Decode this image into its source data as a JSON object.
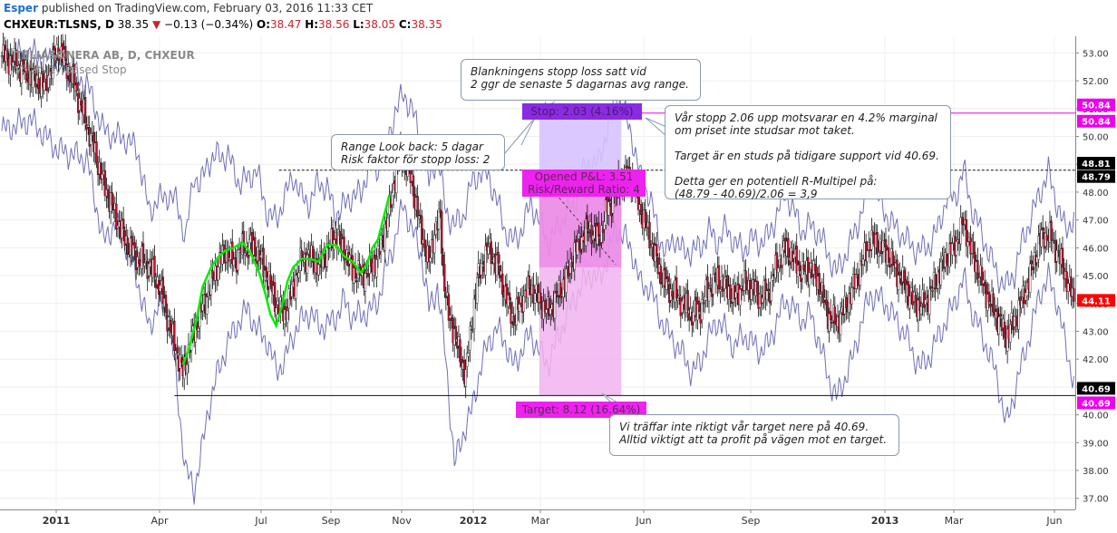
{
  "header": {
    "author": "Esper",
    "published": "published on TradingView.com, February 03, 2016 11:33 CET"
  },
  "symbol": {
    "ticker": "CHXEUR:TLSNS, D",
    "last": "38.35",
    "change": "−0.13 (−0.34%)",
    "o_label": "O:",
    "o_val": "38.47",
    "h_label": "H:",
    "h_val": "38.56",
    "l_label": "L:",
    "l_val": "38.05",
    "c_label": "C:",
    "c_val": "38.35"
  },
  "watermark": {
    "line1": "TELIASONERA AB, D, CHXEUR",
    "line2": "Volatility Based Stop"
  },
  "annotations": {
    "blank_stop": "Blankningens stopp loss satt vid\n2 ggr de senaste 5 dagarnas avg range.",
    "range": "Range Look back: 5 dagar\nRisk faktor för stopp loss: 2",
    "var_stopp": "Vår stopp 2.06 upp motsvarar en 4.2% marginal\nom priset inte studsar mot taket.\n\nTarget är en studs på tidigare support vid 40.69.\n\nDetta ger en potentiell R-Multipel på:\n(48.79 - 40.69)/2.06 = 3,9",
    "vi_traffar": "Vi träffar inte riktigt vår target nere på 40.69.\nAlltid viktigt att ta profit på vägen mot en target."
  },
  "tags": {
    "stop": "Stop: 2.03 (4.16%)",
    "opened": "Opened P&L: 3.51",
    "rr": "Risk/Reward Ratio: 4",
    "target": "Target: 8.12 (16.64%)"
  },
  "colors": {
    "up_candle": "#ffffff",
    "down_candle": "#c8102e",
    "band": "#7070b8",
    "stop_line": "#00ee00",
    "short_box": "#f1b3ee",
    "stop_zone": "#d6c2ff",
    "stop_tag": "#8a2be2",
    "target_tag": "#ee00ee"
  },
  "chart_data": {
    "type": "candlestick",
    "title": "TELIASONERA AB, D, CHXEUR",
    "indicator": "Volatility Based Stop",
    "ylim": [
      36.6,
      53.6
    ],
    "y_ticks": [
      "37.00",
      "38.00",
      "39.00",
      "40.00",
      "41.00",
      "42.00",
      "43.00",
      "44.00",
      "45.00",
      "46.00",
      "47.00",
      "48.00",
      "49.00",
      "50.00",
      "51.00",
      "52.00",
      "53.00"
    ],
    "x_ticks": [
      "2011",
      "Apr",
      "Jul",
      "Sep",
      "Nov",
      "2012",
      "Mar",
      "Jun",
      "Sep",
      "2013",
      "Mar",
      "Jun"
    ],
    "price_labels": [
      {
        "text": "50.84",
        "value": 50.84,
        "color": "#ee00ee"
      },
      {
        "text": "50.84",
        "value": 50.84,
        "color": "#ee00ee"
      },
      {
        "text": "48.81",
        "value": 48.81,
        "color": "#000000"
      },
      {
        "text": "48.79",
        "value": 48.79,
        "color": "#000000"
      },
      {
        "text": "44.11",
        "value": 44.11,
        "color": "#ff0000"
      },
      {
        "text": "40.69",
        "value": 40.69,
        "color": "#000000"
      },
      {
        "text": "40.69",
        "value": 40.69,
        "color": "#ee00ee"
      }
    ],
    "levels": {
      "stop": 50.84,
      "entry": 48.79,
      "target": 40.69
    },
    "close_path": [
      [
        0,
        52.9
      ],
      [
        10,
        52.6
      ],
      [
        20,
        52.2
      ],
      [
        30,
        51.8
      ],
      [
        40,
        53.2
      ],
      [
        50,
        52.0
      ],
      [
        58,
        50.8
      ],
      [
        65,
        49.6
      ],
      [
        72,
        48.3
      ],
      [
        80,
        47.2
      ],
      [
        88,
        46.2
      ],
      [
        96,
        45.6
      ],
      [
        104,
        45.4
      ],
      [
        112,
        44.6
      ],
      [
        118,
        43.3
      ],
      [
        124,
        42.2
      ],
      [
        128,
        41.5
      ],
      [
        134,
        42.7
      ],
      [
        140,
        43.6
      ],
      [
        146,
        44.4
      ],
      [
        152,
        45.3
      ],
      [
        158,
        45.9
      ],
      [
        164,
        45.5
      ],
      [
        170,
        46.0
      ],
      [
        176,
        46.1
      ],
      [
        182,
        45.7
      ],
      [
        188,
        44.9
      ],
      [
        194,
        44.0
      ],
      [
        200,
        43.6
      ],
      [
        206,
        44.6
      ],
      [
        212,
        45.6
      ],
      [
        218,
        45.7
      ],
      [
        224,
        45.3
      ],
      [
        230,
        45.9
      ],
      [
        236,
        46.5
      ],
      [
        242,
        45.9
      ],
      [
        248,
        45.2
      ],
      [
        254,
        45.0
      ],
      [
        260,
        45.2
      ],
      [
        266,
        45.7
      ],
      [
        270,
        46.5
      ],
      [
        274,
        47.3
      ],
      [
        278,
        48.6
      ],
      [
        282,
        49.3
      ],
      [
        286,
        49.0
      ],
      [
        290,
        48.4
      ],
      [
        294,
        47.2
      ],
      [
        298,
        46.3
      ],
      [
        302,
        45.4
      ],
      [
        306,
        46.6
      ],
      [
        310,
        47.1
      ],
      [
        312,
        45.2
      ],
      [
        316,
        43.5
      ],
      [
        320,
        43.0
      ],
      [
        324,
        42.0
      ],
      [
        328,
        41.5
      ],
      [
        332,
        43.2
      ],
      [
        336,
        44.8
      ],
      [
        340,
        45.5
      ],
      [
        344,
        46.0
      ],
      [
        348,
        45.6
      ],
      [
        352,
        45.1
      ],
      [
        356,
        44.3
      ],
      [
        362,
        43.4
      ],
      [
        368,
        44.2
      ],
      [
        374,
        44.6
      ],
      [
        380,
        44.1
      ],
      [
        386,
        43.7
      ],
      [
        392,
        44.2
      ],
      [
        398,
        44.8
      ],
      [
        404,
        45.7
      ],
      [
        410,
        46.4
      ],
      [
        416,
        46.7
      ],
      [
        422,
        46.3
      ],
      [
        428,
        47.4
      ],
      [
        434,
        48.0
      ],
      [
        440,
        48.6
      ],
      [
        446,
        48.4
      ],
      [
        452,
        47.3
      ],
      [
        458,
        46.4
      ],
      [
        464,
        45.3
      ],
      [
        470,
        44.6
      ],
      [
        476,
        44.3
      ],
      [
        482,
        44.0
      ],
      [
        488,
        43.6
      ],
      [
        494,
        43.8
      ],
      [
        500,
        44.6
      ],
      [
        506,
        44.9
      ],
      [
        512,
        44.6
      ],
      [
        518,
        44.2
      ],
      [
        524,
        44.7
      ],
      [
        530,
        44.6
      ],
      [
        536,
        44.2
      ],
      [
        542,
        44.4
      ],
      [
        548,
        45.4
      ],
      [
        554,
        46.0
      ],
      [
        560,
        45.6
      ],
      [
        566,
        45.1
      ],
      [
        572,
        45.3
      ],
      [
        578,
        44.7
      ],
      [
        584,
        43.6
      ],
      [
        590,
        43.3
      ],
      [
        596,
        43.8
      ],
      [
        602,
        44.6
      ],
      [
        608,
        45.4
      ],
      [
        614,
        46.3
      ],
      [
        620,
        46.1
      ],
      [
        626,
        45.8
      ],
      [
        632,
        45.2
      ],
      [
        638,
        44.7
      ],
      [
        644,
        44.1
      ],
      [
        650,
        43.9
      ],
      [
        656,
        44.3
      ],
      [
        662,
        45.0
      ],
      [
        668,
        45.7
      ],
      [
        674,
        46.1
      ],
      [
        680,
        46.9
      ],
      [
        686,
        45.8
      ],
      [
        692,
        44.9
      ],
      [
        698,
        44.1
      ],
      [
        704,
        43.5
      ],
      [
        710,
        42.8
      ],
      [
        716,
        43.4
      ],
      [
        722,
        44.2
      ],
      [
        728,
        45.2
      ],
      [
        734,
        46.3
      ],
      [
        740,
        46.5
      ],
      [
        746,
        45.9
      ],
      [
        752,
        45.0
      ],
      [
        758,
        44.1
      ]
    ],
    "stop_line_path": [
      [
        128,
        41.8
      ],
      [
        132,
        42.3
      ],
      [
        138,
        43.5
      ],
      [
        142,
        44.6
      ],
      [
        148,
        45.3
      ],
      [
        152,
        45.6
      ],
      [
        158,
        45.9
      ],
      [
        164,
        46.0
      ],
      [
        170,
        46.2
      ],
      [
        176,
        45.8
      ],
      [
        182,
        45.1
      ],
      [
        186,
        44.4
      ],
      [
        190,
        43.6
      ],
      [
        194,
        43.2
      ],
      [
        198,
        43.9
      ],
      [
        202,
        44.8
      ],
      [
        206,
        45.3
      ],
      [
        212,
        45.6
      ],
      [
        218,
        45.6
      ],
      [
        224,
        45.5
      ],
      [
        230,
        46.1
      ],
      [
        236,
        46.1
      ],
      [
        242,
        45.7
      ],
      [
        248,
        45.5
      ],
      [
        254,
        45.1
      ],
      [
        258,
        45.4
      ],
      [
        262,
        46.0
      ],
      [
        266,
        46.3
      ],
      [
        270,
        47.1
      ],
      [
        274,
        47.9
      ]
    ],
    "upper_band_path": [
      [
        0,
        52.8
      ],
      [
        20,
        53.0
      ],
      [
        40,
        52.6
      ],
      [
        60,
        51.9
      ],
      [
        72,
        50.2
      ],
      [
        80,
        50.0
      ],
      [
        88,
        49.9
      ],
      [
        96,
        49.5
      ],
      [
        104,
        47.3
      ],
      [
        110,
        47.7
      ],
      [
        118,
        47.9
      ],
      [
        124,
        47.6
      ],
      [
        130,
        46.3
      ],
      [
        136,
        48.7
      ],
      [
        140,
        48.2
      ],
      [
        146,
        49.1
      ],
      [
        152,
        49.3
      ],
      [
        160,
        49.3
      ],
      [
        168,
        48.3
      ],
      [
        174,
        48.5
      ],
      [
        180,
        48.8
      ],
      [
        188,
        47.2
      ],
      [
        194,
        47.0
      ],
      [
        200,
        47.8
      ],
      [
        206,
        48.6
      ],
      [
        212,
        47.8
      ],
      [
        218,
        47.6
      ],
      [
        224,
        48.4
      ],
      [
        230,
        48.1
      ],
      [
        236,
        47.2
      ],
      [
        242,
        47.5
      ],
      [
        248,
        47.9
      ],
      [
        254,
        47.9
      ],
      [
        260,
        49.1
      ],
      [
        266,
        48.8
      ],
      [
        272,
        49.6
      ],
      [
        278,
        50.9
      ],
      [
        284,
        51.5
      ],
      [
        290,
        51.0
      ],
      [
        296,
        49.8
      ],
      [
        302,
        48.3
      ],
      [
        308,
        49.4
      ],
      [
        314,
        47.3
      ],
      [
        320,
        46.8
      ],
      [
        326,
        47.1
      ],
      [
        332,
        48.3
      ],
      [
        338,
        48.7
      ],
      [
        344,
        48.6
      ],
      [
        350,
        47.7
      ],
      [
        356,
        46.6
      ],
      [
        362,
        46.2
      ],
      [
        368,
        46.7
      ],
      [
        374,
        47.6
      ],
      [
        380,
        47.0
      ],
      [
        386,
        46.2
      ],
      [
        392,
        46.6
      ],
      [
        398,
        47.2
      ],
      [
        404,
        47.4
      ],
      [
        410,
        48.6
      ],
      [
        416,
        49.1
      ],
      [
        422,
        49.0
      ],
      [
        428,
        50.3
      ],
      [
        434,
        51.6
      ],
      [
        440,
        50.9
      ],
      [
        446,
        49.9
      ],
      [
        452,
        48.4
      ],
      [
        458,
        47.9
      ],
      [
        464,
        46.5
      ],
      [
        470,
        45.8
      ],
      [
        476,
        46.4
      ],
      [
        482,
        45.8
      ],
      [
        488,
        45.9
      ],
      [
        494,
        46.0
      ],
      [
        500,
        46.6
      ],
      [
        506,
        46.2
      ],
      [
        512,
        46.7
      ],
      [
        518,
        46.2
      ],
      [
        524,
        45.9
      ],
      [
        530,
        46.3
      ],
      [
        536,
        46.2
      ],
      [
        542,
        46.4
      ],
      [
        548,
        47.2
      ],
      [
        554,
        48.0
      ],
      [
        560,
        47.3
      ],
      [
        566,
        46.6
      ],
      [
        572,
        46.8
      ],
      [
        578,
        46.5
      ],
      [
        584,
        45.8
      ],
      [
        590,
        45.1
      ],
      [
        596,
        45.7
      ],
      [
        602,
        46.4
      ],
      [
        608,
        47.3
      ],
      [
        614,
        48.6
      ],
      [
        620,
        47.8
      ],
      [
        626,
        47.1
      ],
      [
        632,
        46.7
      ],
      [
        638,
        46.4
      ],
      [
        644,
        46.0
      ],
      [
        650,
        45.9
      ],
      [
        656,
        46.1
      ],
      [
        662,
        46.7
      ],
      [
        668,
        47.8
      ],
      [
        674,
        47.8
      ],
      [
        680,
        48.8
      ],
      [
        686,
        47.4
      ],
      [
        692,
        46.6
      ],
      [
        698,
        45.8
      ],
      [
        704,
        45.0
      ],
      [
        710,
        44.6
      ],
      [
        716,
        45.1
      ],
      [
        722,
        46.3
      ],
      [
        728,
        47.1
      ],
      [
        734,
        48.0
      ],
      [
        740,
        48.7
      ],
      [
        746,
        47.6
      ],
      [
        752,
        46.6
      ],
      [
        758,
        47.1
      ]
    ],
    "lower_band_path": [
      [
        0,
        50.2
      ],
      [
        20,
        50.6
      ],
      [
        40,
        49.5
      ],
      [
        60,
        49.2
      ],
      [
        72,
        46.2
      ],
      [
        80,
        46.9
      ],
      [
        88,
        46.1
      ],
      [
        96,
        44.8
      ],
      [
        104,
        43.1
      ],
      [
        110,
        43.9
      ],
      [
        118,
        43.8
      ],
      [
        124,
        40.8
      ],
      [
        130,
        38.0
      ],
      [
        136,
        37.3
      ],
      [
        142,
        38.9
      ],
      [
        146,
        40.2
      ],
      [
        152,
        41.4
      ],
      [
        160,
        42.6
      ],
      [
        168,
        43.4
      ],
      [
        174,
        43.8
      ],
      [
        180,
        43.1
      ],
      [
        188,
        42.6
      ],
      [
        194,
        41.6
      ],
      [
        200,
        41.9
      ],
      [
        206,
        42.9
      ],
      [
        212,
        43.4
      ],
      [
        218,
        43.7
      ],
      [
        224,
        43.2
      ],
      [
        230,
        43.2
      ],
      [
        236,
        43.5
      ],
      [
        242,
        44.1
      ],
      [
        248,
        43.5
      ],
      [
        254,
        43.6
      ],
      [
        260,
        43.7
      ],
      [
        266,
        44.1
      ],
      [
        272,
        45.3
      ],
      [
        278,
        46.3
      ],
      [
        284,
        47.6
      ],
      [
        290,
        46.6
      ],
      [
        296,
        45.9
      ],
      [
        302,
        43.8
      ],
      [
        308,
        44.6
      ],
      [
        314,
        42.0
      ],
      [
        320,
        38.2
      ],
      [
        326,
        39.3
      ],
      [
        332,
        40.1
      ],
      [
        338,
        41.6
      ],
      [
        344,
        42.6
      ],
      [
        350,
        43.1
      ],
      [
        356,
        42.6
      ],
      [
        362,
        41.7
      ],
      [
        368,
        42.4
      ],
      [
        374,
        42.9
      ],
      [
        380,
        42.3
      ],
      [
        386,
        41.8
      ],
      [
        392,
        42.6
      ],
      [
        398,
        43.4
      ],
      [
        404,
        44.1
      ],
      [
        410,
        44.6
      ],
      [
        416,
        45.1
      ],
      [
        422,
        44.8
      ],
      [
        428,
        45.6
      ],
      [
        434,
        46.7
      ],
      [
        440,
        46.4
      ],
      [
        446,
        45.8
      ],
      [
        452,
        44.6
      ],
      [
        458,
        44.6
      ],
      [
        464,
        43.7
      ],
      [
        470,
        43.0
      ],
      [
        476,
        42.6
      ],
      [
        482,
        42.1
      ],
      [
        488,
        41.5
      ],
      [
        494,
        41.9
      ],
      [
        500,
        42.8
      ],
      [
        506,
        43.4
      ],
      [
        512,
        43.0
      ],
      [
        518,
        42.4
      ],
      [
        524,
        42.9
      ],
      [
        530,
        42.6
      ],
      [
        536,
        42.3
      ],
      [
        542,
        42.5
      ],
      [
        548,
        43.4
      ],
      [
        554,
        44.1
      ],
      [
        560,
        43.8
      ],
      [
        566,
        43.4
      ],
      [
        572,
        43.6
      ],
      [
        578,
        42.6
      ],
      [
        584,
        41.4
      ],
      [
        590,
        40.6
      ],
      [
        596,
        41.3
      ],
      [
        602,
        42.1
      ],
      [
        608,
        43.4
      ],
      [
        614,
        44.3
      ],
      [
        620,
        44.2
      ],
      [
        626,
        43.9
      ],
      [
        632,
        43.4
      ],
      [
        638,
        43.0
      ],
      [
        644,
        42.2
      ],
      [
        650,
        41.7
      ],
      [
        656,
        42.1
      ],
      [
        662,
        42.8
      ],
      [
        668,
        43.4
      ],
      [
        674,
        44.1
      ],
      [
        680,
        44.9
      ],
      [
        686,
        43.7
      ],
      [
        692,
        43.0
      ],
      [
        698,
        42.2
      ],
      [
        704,
        41.3
      ],
      [
        710,
        39.6
      ],
      [
        716,
        40.8
      ],
      [
        722,
        42.0
      ],
      [
        728,
        43.1
      ],
      [
        734,
        44.4
      ],
      [
        740,
        44.9
      ],
      [
        746,
        44.1
      ],
      [
        752,
        42.5
      ],
      [
        758,
        41.2
      ]
    ]
  }
}
